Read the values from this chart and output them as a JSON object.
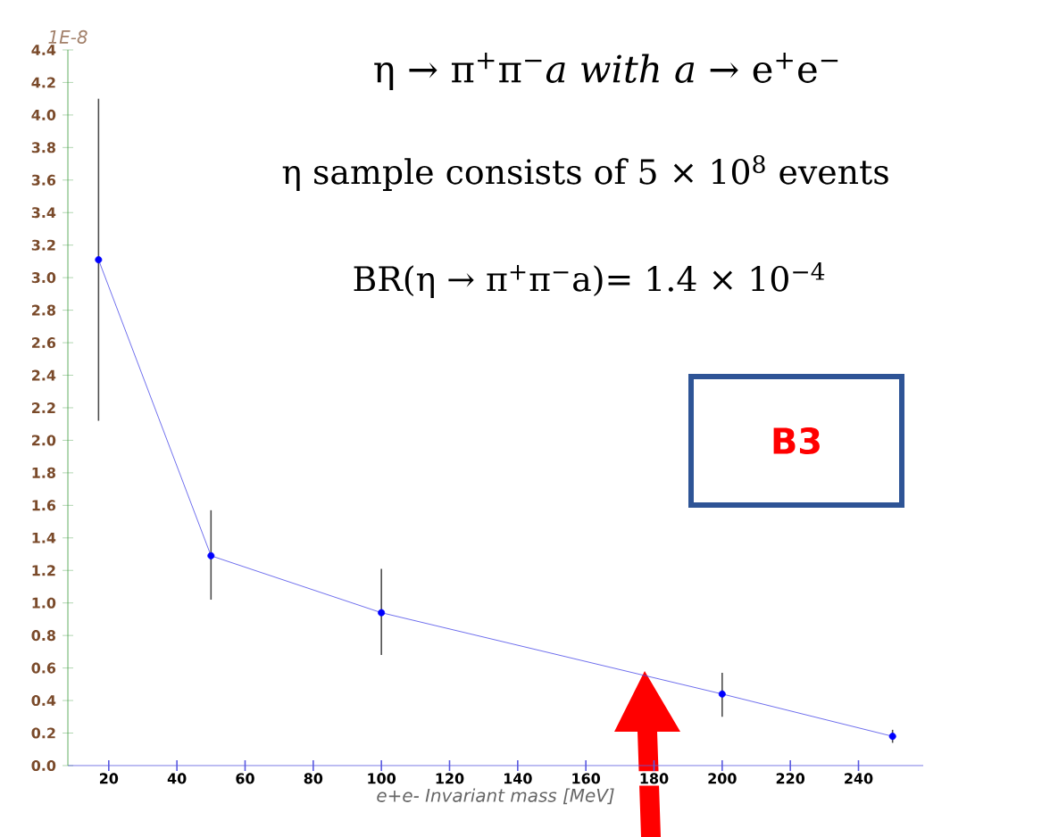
{
  "chart_data": {
    "type": "line",
    "title": "η → π$^{+}$π$^{−}$*a* *with* *a* → e$^{+}$e$^{−}$",
    "subtitle": "η sample consists of 5 × 10$^{8}$ events",
    "xlabel": "e+e- Invariant mass    [MeV]",
    "ylabel": "1E-8",
    "annotations": [
      "BR(η → π$^{+}$π$^{−}$a)= 1.4 × 10$^{−4}$",
      "B3"
    ],
    "series": [
      {
        "color": "#4a4ae8",
        "x": [
          17,
          50,
          100,
          200,
          250
        ],
        "values": [
          3.11,
          1.29,
          0.94,
          0.44,
          0.18
        ],
        "errors": [
          [
            2.12,
            4.1
          ],
          [
            1.02,
            1.57
          ],
          [
            0.68,
            1.21
          ],
          [
            0.3,
            0.57
          ],
          [
            0.14,
            0.22
          ]
        ]
      }
    ],
    "xlim": [
      8,
      259
    ],
    "xticks": [
      20,
      40,
      60,
      80,
      100,
      120,
      140,
      160,
      180,
      200,
      220,
      240
    ],
    "ylim": [
      0,
      4.4
    ],
    "yticks": [
      {
        "value": 0,
        "label": "0.0"
      },
      0.2,
      0.4,
      0.6,
      0.8,
      {
        "value": 1,
        "label": "1.0"
      },
      1.2,
      1.4,
      1.6,
      1.8,
      {
        "value": 2,
        "label": "2.0"
      },
      2.2,
      2.4,
      2.6,
      2.8,
      {
        "value": 3,
        "label": "3.0"
      },
      3.2,
      3.4,
      3.6,
      3.8,
      {
        "value": 4,
        "label": "4.0"
      },
      4.2,
      4.4
    ],
    "marker": "circle",
    "line_style": "solid"
  }
}
